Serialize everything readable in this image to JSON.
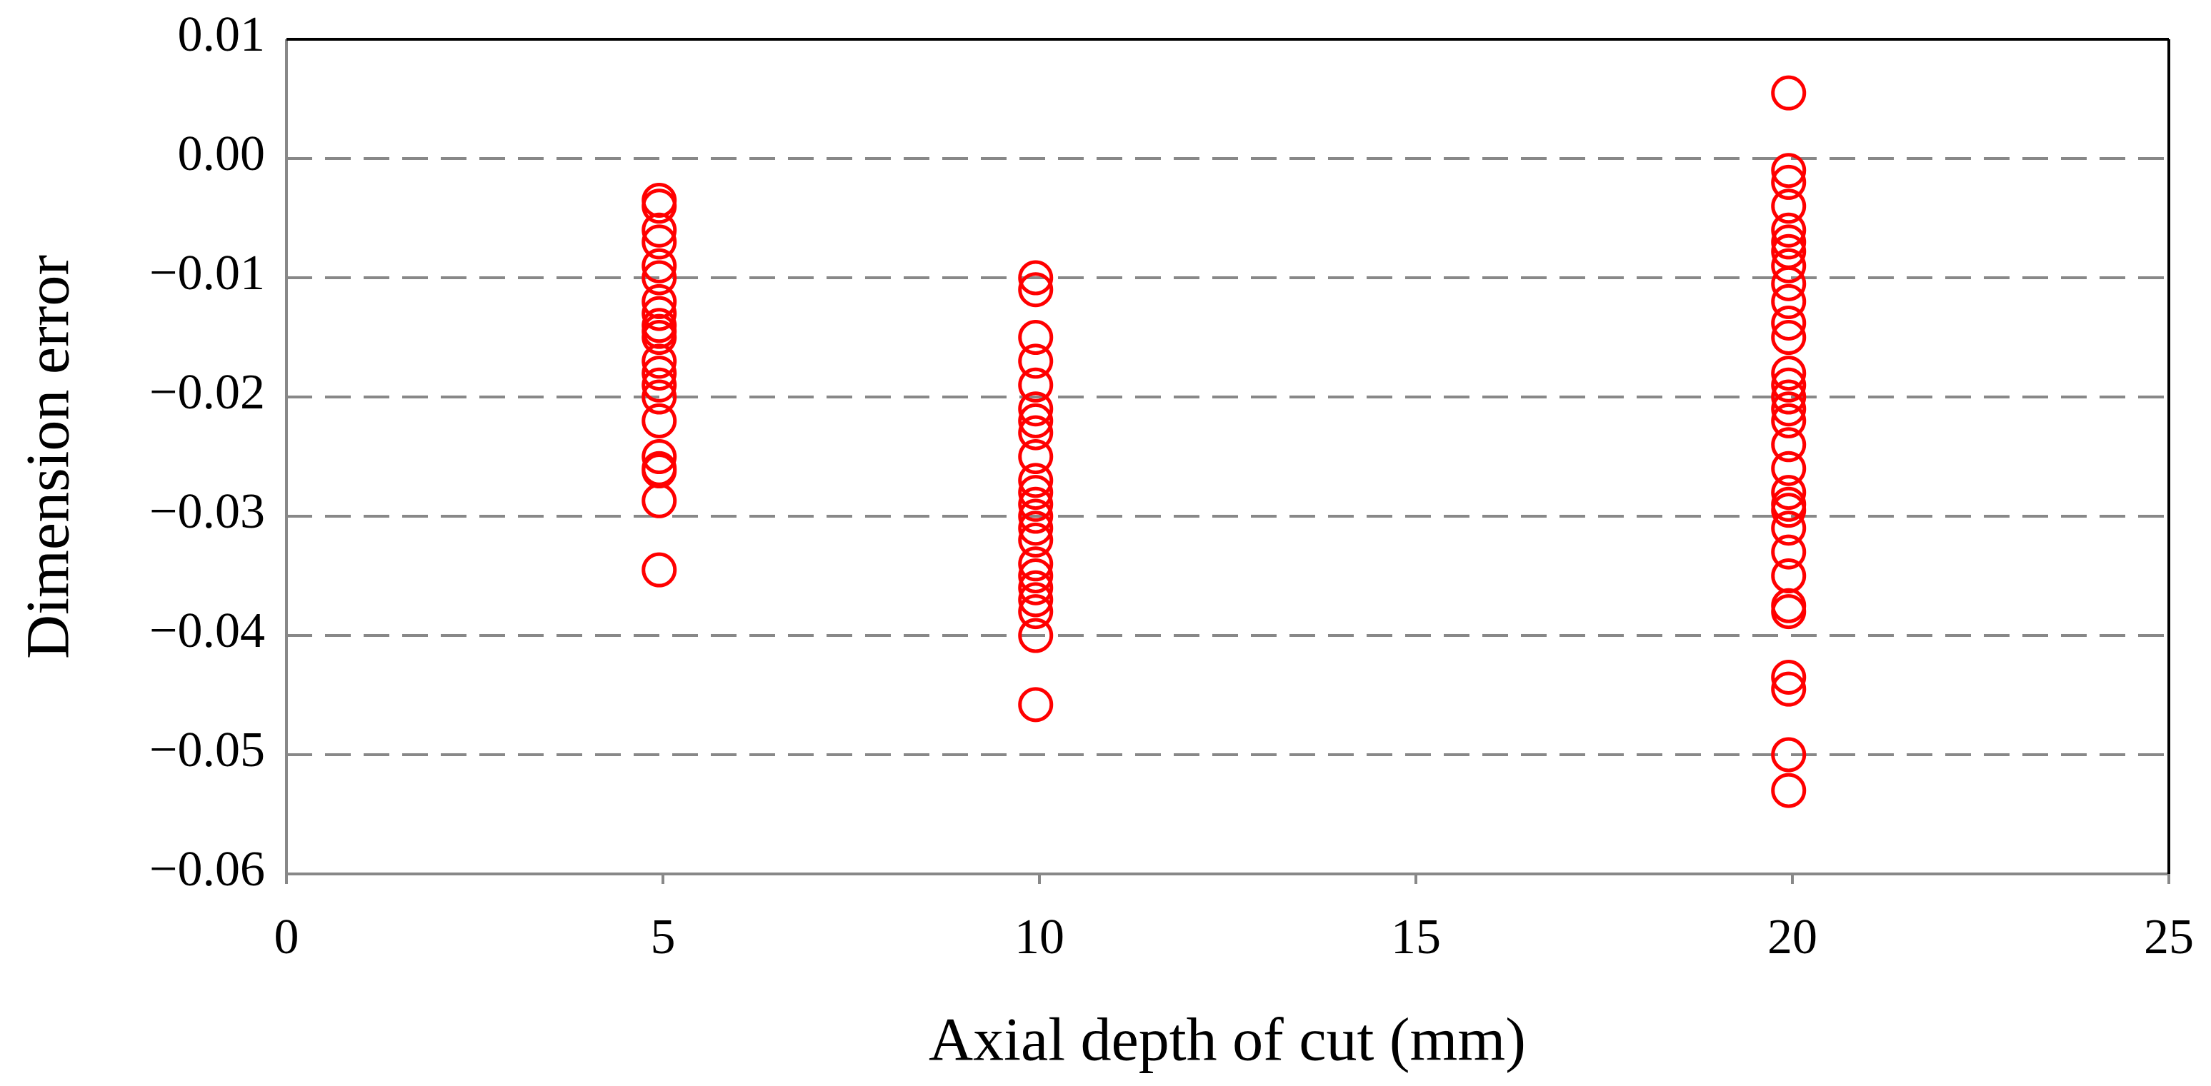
{
  "chart_data": {
    "type": "scatter",
    "x_label": "Axial depth of cut (mm)",
    "y_label": "Dimension error",
    "color": "#ff0000",
    "grid": true,
    "xlim": [
      0,
      25
    ],
    "ylim": [
      -0.06,
      0.01
    ],
    "xticks": [
      0,
      5,
      10,
      15,
      20,
      25
    ],
    "yticks": [
      0.01,
      {
        "value": 0,
        "label": "0.00"
      },
      {
        "value": -0.01,
        "label": "−0.01"
      },
      {
        "value": -0.02,
        "label": "−0.02"
      },
      {
        "value": -0.03,
        "label": "−0.03"
      },
      {
        "value": -0.04,
        "label": "−0.04"
      },
      {
        "value": -0.05,
        "label": "−0.05"
      },
      {
        "value": -0.06,
        "label": "−0.06"
      }
    ],
    "x": [
      4.95,
      4.95,
      4.95,
      4.95,
      4.95,
      4.95,
      4.95,
      4.95,
      4.95,
      4.95,
      4.95,
      4.95,
      4.95,
      4.95,
      4.95,
      4.95,
      4.95,
      4.95,
      4.95,
      4.95,
      4.95,
      9.95,
      9.95,
      9.95,
      9.95,
      9.95,
      9.95,
      9.95,
      9.95,
      9.95,
      9.95,
      9.95,
      9.95,
      9.95,
      9.95,
      9.95,
      9.95,
      9.95,
      9.95,
      9.95,
      9.95,
      9.95,
      9.95,
      19.95,
      19.95,
      19.95,
      19.95,
      19.95,
      19.95,
      19.95,
      19.95,
      19.95,
      19.95,
      19.95,
      19.95,
      19.95,
      19.95,
      19.95,
      19.95,
      19.95,
      19.95,
      19.95,
      19.95,
      19.95,
      19.95,
      19.95,
      19.95,
      19.95,
      19.95,
      19.95,
      19.95,
      19.95,
      19.95,
      19.95
    ],
    "values": [
      -0.0035,
      -0.004,
      -0.006,
      -0.007,
      -0.009,
      -0.01,
      -0.012,
      -0.013,
      -0.014,
      -0.0145,
      -0.015,
      -0.017,
      -0.018,
      -0.019,
      -0.02,
      -0.022,
      -0.025,
      -0.026,
      -0.0262,
      -0.0287,
      -0.0345,
      -0.01,
      -0.011,
      -0.015,
      -0.017,
      -0.019,
      -0.021,
      -0.022,
      -0.023,
      -0.025,
      -0.027,
      -0.028,
      -0.029,
      -0.03,
      -0.031,
      -0.032,
      -0.034,
      -0.035,
      -0.036,
      -0.037,
      -0.038,
      -0.04,
      -0.0458,
      0.0055,
      -0.001,
      -0.002,
      -0.004,
      -0.006,
      -0.007,
      -0.0078,
      -0.009,
      -0.0105,
      -0.012,
      -0.0138,
      -0.015,
      -0.018,
      -0.019,
      -0.02,
      -0.021,
      -0.022,
      -0.024,
      -0.026,
      -0.028,
      -0.029,
      -0.0295,
      -0.031,
      -0.033,
      -0.035,
      -0.0375,
      -0.038,
      -0.0435,
      -0.0445,
      -0.05,
      -0.053
    ]
  }
}
